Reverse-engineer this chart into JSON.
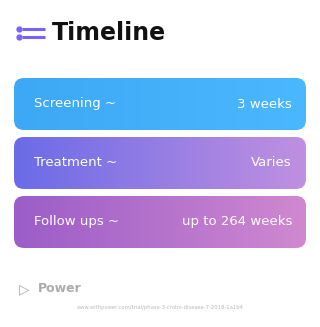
{
  "title": "Timeline",
  "background_color": "#ffffff",
  "title_color": "#111111",
  "title_fontsize": 17,
  "icon_line_color": "#7b61ff",
  "icon_dot_color": "#7b61ff",
  "rows": [
    {
      "label": "Screening ~",
      "value": "3 weeks",
      "color_left": "#3da8f5",
      "color_right": "#4ab8ff"
    },
    {
      "label": "Treatment ~",
      "value": "Varies",
      "color_left": "#6b6be8",
      "color_right": "#c090e0"
    },
    {
      "label": "Follow ups ~",
      "value": "up to 264 weeks",
      "color_left": "#9b5dc8",
      "color_right": "#d088d0"
    }
  ],
  "footer_text": "www.withpower.com/trial/phase-3-crohn-disease-7-2018-2a1b4",
  "footer_color": "#bbbbbb",
  "power_text": "Power",
  "power_color": "#aaaaaa"
}
